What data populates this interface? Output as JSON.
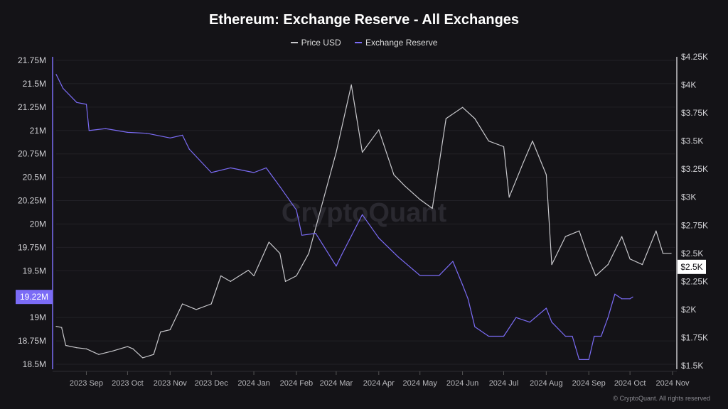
{
  "chart_data": {
    "type": "line",
    "title": "Ethereum: Exchange Reserve - All Exchanges",
    "legend_position": "top",
    "grid": true,
    "watermark": "CryptoQuant",
    "copyright": "© CryptoQuant. All rights reserved",
    "x_ticks": [
      "2023 Sep",
      "2023 Oct",
      "2023 Nov",
      "2023 Dec",
      "2024 Jan",
      "2024 Feb",
      "2024 Mar",
      "2024 Apr",
      "2024 May",
      "2024 Jun",
      "2024 Jul",
      "2024 Aug",
      "2024 Sep",
      "2024 Oct",
      "2024 Nov"
    ],
    "x_tick_dates": [
      "2023-09-01",
      "2023-10-01",
      "2023-11-01",
      "2023-12-01",
      "2024-01-01",
      "2024-02-01",
      "2024-03-01",
      "2024-04-01",
      "2024-05-01",
      "2024-06-01",
      "2024-07-01",
      "2024-08-01",
      "2024-09-01",
      "2024-10-01",
      "2024-11-01"
    ],
    "xlim": [
      "2023-08-10",
      "2024-11-01"
    ],
    "left_axis": {
      "ticks": [
        "21.75M",
        "21.5M",
        "21.25M",
        "21M",
        "20.75M",
        "20.5M",
        "20.25M",
        "20M",
        "19.75M",
        "19.5M",
        "19M",
        "18.75M",
        "18.5M"
      ],
      "tick_values": [
        21.75,
        21.5,
        21.25,
        21,
        20.75,
        20.5,
        20.25,
        20,
        19.75,
        19.5,
        19,
        18.75,
        18.5
      ],
      "ylim": [
        18.5,
        21.75
      ],
      "current_label": "19.22M",
      "current_value": 19.22
    },
    "right_axis": {
      "ticks": [
        "$4.25K",
        "$4K",
        "$3.75K",
        "$3.5K",
        "$3.25K",
        "$3K",
        "$2.75K",
        "$2.5K",
        "$2.25K",
        "$2K",
        "$1.75K",
        "$1.5K"
      ],
      "tick_values": [
        4.25,
        4,
        3.75,
        3.5,
        3.25,
        3,
        2.75,
        2.5,
        2.25,
        2,
        1.75,
        1.5
      ],
      "ylim": [
        1.5,
        4.25
      ],
      "current_label": "$2.5K",
      "current_value": 2.5
    },
    "series": [
      {
        "name": "Price USD",
        "axis": "right",
        "color": "#c8c8cc",
        "x": [
          "2023-08-10",
          "2023-08-14",
          "2023-08-17",
          "2023-08-25",
          "2023-09-01",
          "2023-09-10",
          "2023-09-20",
          "2023-10-01",
          "2023-10-05",
          "2023-10-12",
          "2023-10-20",
          "2023-10-25",
          "2023-11-01",
          "2023-11-10",
          "2023-11-20",
          "2023-12-01",
          "2023-12-08",
          "2023-12-15",
          "2023-12-28",
          "2024-01-01",
          "2024-01-12",
          "2024-01-20",
          "2024-01-24",
          "2024-02-01",
          "2024-02-10",
          "2024-02-20",
          "2024-03-01",
          "2024-03-12",
          "2024-03-20",
          "2024-04-01",
          "2024-04-12",
          "2024-04-20",
          "2024-05-01",
          "2024-05-10",
          "2024-05-20",
          "2024-06-01",
          "2024-06-10",
          "2024-06-20",
          "2024-07-01",
          "2024-07-05",
          "2024-07-15",
          "2024-07-22",
          "2024-08-01",
          "2024-08-05",
          "2024-08-15",
          "2024-08-25",
          "2024-09-01",
          "2024-09-06",
          "2024-09-15",
          "2024-09-25",
          "2024-10-01",
          "2024-10-10",
          "2024-10-20",
          "2024-10-25",
          "2024-10-31"
        ],
        "values": [
          1.85,
          1.84,
          1.68,
          1.66,
          1.65,
          1.6,
          1.63,
          1.67,
          1.65,
          1.57,
          1.6,
          1.8,
          1.82,
          2.05,
          2.0,
          2.05,
          2.3,
          2.25,
          2.35,
          2.3,
          2.6,
          2.5,
          2.25,
          2.3,
          2.5,
          2.95,
          3.4,
          4.0,
          3.4,
          3.6,
          3.2,
          3.1,
          2.98,
          2.9,
          3.7,
          3.8,
          3.7,
          3.5,
          3.45,
          3.0,
          3.3,
          3.5,
          3.2,
          2.4,
          2.65,
          2.7,
          2.45,
          2.3,
          2.4,
          2.65,
          2.45,
          2.4,
          2.7,
          2.5,
          2.5
        ]
      },
      {
        "name": "Exchange Reserve",
        "axis": "left",
        "color": "#7b6cf6",
        "x": [
          "2023-08-10",
          "2023-08-15",
          "2023-08-25",
          "2023-09-01",
          "2023-09-03",
          "2023-09-15",
          "2023-10-01",
          "2023-10-15",
          "2023-11-01",
          "2023-11-10",
          "2023-11-15",
          "2023-12-01",
          "2023-12-15",
          "2024-01-01",
          "2024-01-10",
          "2024-01-20",
          "2024-02-01",
          "2024-02-05",
          "2024-02-15",
          "2024-03-01",
          "2024-03-05",
          "2024-03-20",
          "2024-04-01",
          "2024-04-15",
          "2024-05-01",
          "2024-05-15",
          "2024-05-25",
          "2024-06-01",
          "2024-06-05",
          "2024-06-10",
          "2024-06-20",
          "2024-07-01",
          "2024-07-10",
          "2024-07-20",
          "2024-08-01",
          "2024-08-05",
          "2024-08-15",
          "2024-08-20",
          "2024-08-25",
          "2024-09-01",
          "2024-09-05",
          "2024-09-10",
          "2024-09-15",
          "2024-09-20",
          "2024-09-25",
          "2024-10-01",
          "2024-10-03"
        ],
        "values": [
          21.6,
          21.45,
          21.3,
          21.28,
          21.0,
          21.02,
          20.98,
          20.97,
          20.92,
          20.95,
          20.8,
          20.55,
          20.6,
          20.55,
          20.6,
          20.4,
          20.15,
          19.88,
          19.9,
          19.55,
          19.67,
          20.1,
          19.85,
          19.65,
          19.45,
          19.45,
          19.6,
          19.35,
          19.2,
          18.9,
          18.8,
          18.8,
          19.0,
          18.95,
          19.1,
          18.95,
          18.8,
          18.8,
          18.55,
          18.55,
          18.8,
          18.8,
          19.0,
          19.25,
          19.2,
          19.2,
          19.22
        ]
      }
    ]
  }
}
